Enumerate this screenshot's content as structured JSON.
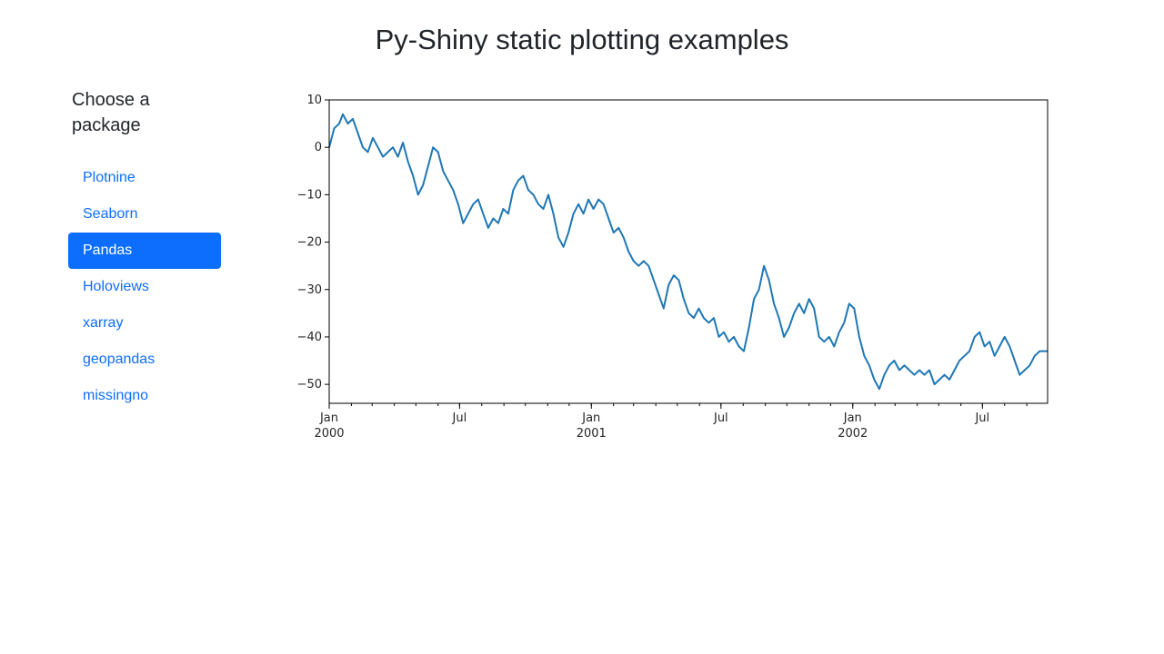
{
  "page": {
    "title": "Py-Shiny static plotting examples"
  },
  "sidebar": {
    "heading": "Choose a package",
    "items": [
      {
        "label": "Plotnine",
        "active": false
      },
      {
        "label": "Seaborn",
        "active": false
      },
      {
        "label": "Pandas",
        "active": true
      },
      {
        "label": "Holoviews",
        "active": false
      },
      {
        "label": "xarray",
        "active": false
      },
      {
        "label": "geopandas",
        "active": false
      },
      {
        "label": "missingno",
        "active": false
      }
    ]
  },
  "colors": {
    "accent": "#0d6efd",
    "line": "#1f77b4"
  },
  "chart_data": {
    "type": "line",
    "title": "",
    "xlabel": "",
    "ylabel": "",
    "x_range": [
      "2000-01-01",
      "2002-09-30"
    ],
    "ylim": [
      -54,
      10
    ],
    "y_ticks": [
      10,
      0,
      -10,
      -20,
      -30,
      -40,
      -50
    ],
    "x_ticks": [
      {
        "date": "2000-01-01",
        "label": "Jan",
        "sub": "2000"
      },
      {
        "date": "2000-07-01",
        "label": "Jul",
        "sub": ""
      },
      {
        "date": "2001-01-01",
        "label": "Jan",
        "sub": "2001"
      },
      {
        "date": "2001-07-01",
        "label": "Jul",
        "sub": ""
      },
      {
        "date": "2002-01-01",
        "label": "Jan",
        "sub": "2002"
      },
      {
        "date": "2002-07-01",
        "label": "Jul",
        "sub": ""
      }
    ],
    "grid": false,
    "legend": "none",
    "series": [
      {
        "values": [
          [
            "2000-01-01",
            0
          ],
          [
            "2000-01-08",
            4
          ],
          [
            "2000-01-15",
            5
          ],
          [
            "2000-01-20",
            7
          ],
          [
            "2000-01-27",
            5
          ],
          [
            "2000-02-03",
            6
          ],
          [
            "2000-02-10",
            3
          ],
          [
            "2000-02-17",
            0
          ],
          [
            "2000-02-24",
            -1
          ],
          [
            "2000-03-02",
            2
          ],
          [
            "2000-03-09",
            0
          ],
          [
            "2000-03-16",
            -2
          ],
          [
            "2000-03-23",
            -1
          ],
          [
            "2000-03-30",
            0
          ],
          [
            "2000-04-06",
            -2
          ],
          [
            "2000-04-13",
            1
          ],
          [
            "2000-04-20",
            -3
          ],
          [
            "2000-04-27",
            -6
          ],
          [
            "2000-05-04",
            -10
          ],
          [
            "2000-05-11",
            -8
          ],
          [
            "2000-05-18",
            -4
          ],
          [
            "2000-05-25",
            0
          ],
          [
            "2000-06-01",
            -1
          ],
          [
            "2000-06-08",
            -5
          ],
          [
            "2000-06-15",
            -7
          ],
          [
            "2000-06-22",
            -9
          ],
          [
            "2000-06-29",
            -12
          ],
          [
            "2000-07-06",
            -16
          ],
          [
            "2000-07-13",
            -14
          ],
          [
            "2000-07-20",
            -12
          ],
          [
            "2000-07-27",
            -11
          ],
          [
            "2000-08-03",
            -14
          ],
          [
            "2000-08-10",
            -17
          ],
          [
            "2000-08-17",
            -15
          ],
          [
            "2000-08-24",
            -16
          ],
          [
            "2000-08-31",
            -13
          ],
          [
            "2000-09-07",
            -14
          ],
          [
            "2000-09-14",
            -9
          ],
          [
            "2000-09-21",
            -7
          ],
          [
            "2000-09-28",
            -6
          ],
          [
            "2000-10-05",
            -9
          ],
          [
            "2000-10-12",
            -10
          ],
          [
            "2000-10-19",
            -12
          ],
          [
            "2000-10-26",
            -13
          ],
          [
            "2000-11-02",
            -10
          ],
          [
            "2000-11-09",
            -14
          ],
          [
            "2000-11-16",
            -19
          ],
          [
            "2000-11-23",
            -21
          ],
          [
            "2000-11-30",
            -18
          ],
          [
            "2000-12-07",
            -14
          ],
          [
            "2000-12-14",
            -12
          ],
          [
            "2000-12-21",
            -14
          ],
          [
            "2000-12-28",
            -11
          ],
          [
            "2001-01-04",
            -13
          ],
          [
            "2001-01-11",
            -11
          ],
          [
            "2001-01-18",
            -12
          ],
          [
            "2001-01-25",
            -15
          ],
          [
            "2001-02-01",
            -18
          ],
          [
            "2001-02-08",
            -17
          ],
          [
            "2001-02-15",
            -19
          ],
          [
            "2001-02-22",
            -22
          ],
          [
            "2001-03-01",
            -24
          ],
          [
            "2001-03-08",
            -25
          ],
          [
            "2001-03-15",
            -24
          ],
          [
            "2001-03-22",
            -25
          ],
          [
            "2001-03-29",
            -28
          ],
          [
            "2001-04-05",
            -31
          ],
          [
            "2001-04-12",
            -34
          ],
          [
            "2001-04-19",
            -29
          ],
          [
            "2001-04-26",
            -27
          ],
          [
            "2001-05-03",
            -28
          ],
          [
            "2001-05-10",
            -32
          ],
          [
            "2001-05-17",
            -35
          ],
          [
            "2001-05-24",
            -36
          ],
          [
            "2001-05-31",
            -34
          ],
          [
            "2001-06-07",
            -36
          ],
          [
            "2001-06-14",
            -37
          ],
          [
            "2001-06-21",
            -36
          ],
          [
            "2001-06-28",
            -40
          ],
          [
            "2001-07-05",
            -39
          ],
          [
            "2001-07-12",
            -41
          ],
          [
            "2001-07-19",
            -40
          ],
          [
            "2001-07-26",
            -42
          ],
          [
            "2001-08-02",
            -43
          ],
          [
            "2001-08-09",
            -38
          ],
          [
            "2001-08-16",
            -32
          ],
          [
            "2001-08-23",
            -30
          ],
          [
            "2001-08-30",
            -25
          ],
          [
            "2001-09-06",
            -28
          ],
          [
            "2001-09-13",
            -33
          ],
          [
            "2001-09-20",
            -36
          ],
          [
            "2001-09-27",
            -40
          ],
          [
            "2001-10-04",
            -38
          ],
          [
            "2001-10-11",
            -35
          ],
          [
            "2001-10-18",
            -33
          ],
          [
            "2001-10-25",
            -35
          ],
          [
            "2001-11-01",
            -32
          ],
          [
            "2001-11-08",
            -34
          ],
          [
            "2001-11-15",
            -40
          ],
          [
            "2001-11-22",
            -41
          ],
          [
            "2001-11-29",
            -40
          ],
          [
            "2001-12-06",
            -42
          ],
          [
            "2001-12-13",
            -39
          ],
          [
            "2001-12-20",
            -37
          ],
          [
            "2001-12-27",
            -33
          ],
          [
            "2002-01-03",
            -34
          ],
          [
            "2002-01-10",
            -40
          ],
          [
            "2002-01-17",
            -44
          ],
          [
            "2002-01-24",
            -46
          ],
          [
            "2002-01-31",
            -49
          ],
          [
            "2002-02-07",
            -51
          ],
          [
            "2002-02-14",
            -48
          ],
          [
            "2002-02-21",
            -46
          ],
          [
            "2002-02-28",
            -45
          ],
          [
            "2002-03-07",
            -47
          ],
          [
            "2002-03-14",
            -46
          ],
          [
            "2002-03-21",
            -47
          ],
          [
            "2002-03-28",
            -48
          ],
          [
            "2002-04-04",
            -47
          ],
          [
            "2002-04-11",
            -48
          ],
          [
            "2002-04-18",
            -47
          ],
          [
            "2002-04-25",
            -50
          ],
          [
            "2002-05-02",
            -49
          ],
          [
            "2002-05-09",
            -48
          ],
          [
            "2002-05-16",
            -49
          ],
          [
            "2002-05-23",
            -47
          ],
          [
            "2002-05-30",
            -45
          ],
          [
            "2002-06-06",
            -44
          ],
          [
            "2002-06-13",
            -43
          ],
          [
            "2002-06-20",
            -40
          ],
          [
            "2002-06-27",
            -39
          ],
          [
            "2002-07-04",
            -42
          ],
          [
            "2002-07-11",
            -41
          ],
          [
            "2002-07-18",
            -44
          ],
          [
            "2002-07-25",
            -42
          ],
          [
            "2002-08-01",
            -40
          ],
          [
            "2002-08-08",
            -42
          ],
          [
            "2002-08-15",
            -45
          ],
          [
            "2002-08-22",
            -48
          ],
          [
            "2002-08-29",
            -47
          ],
          [
            "2002-09-05",
            -46
          ],
          [
            "2002-09-12",
            -44
          ],
          [
            "2002-09-19",
            -43
          ],
          [
            "2002-09-30",
            -43
          ]
        ]
      }
    ]
  }
}
